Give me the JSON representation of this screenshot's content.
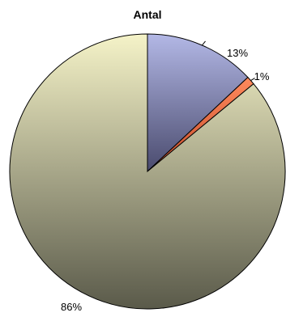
{
  "chart_data": {
    "type": "pie",
    "title": "Antal",
    "slices": [
      {
        "value": 13,
        "label": "13%",
        "color": "#b3b8e6",
        "color_dark": "#4a4b6e"
      },
      {
        "value": 1,
        "label": "1%",
        "color": "#ff8a5c",
        "color_dark": "#c24a2a"
      },
      {
        "value": 86,
        "label": "86%",
        "color": "#f5f3c8",
        "color_dark": "#5a5a4a"
      }
    ],
    "start_angle_deg": -90,
    "direction": "clockwise"
  }
}
